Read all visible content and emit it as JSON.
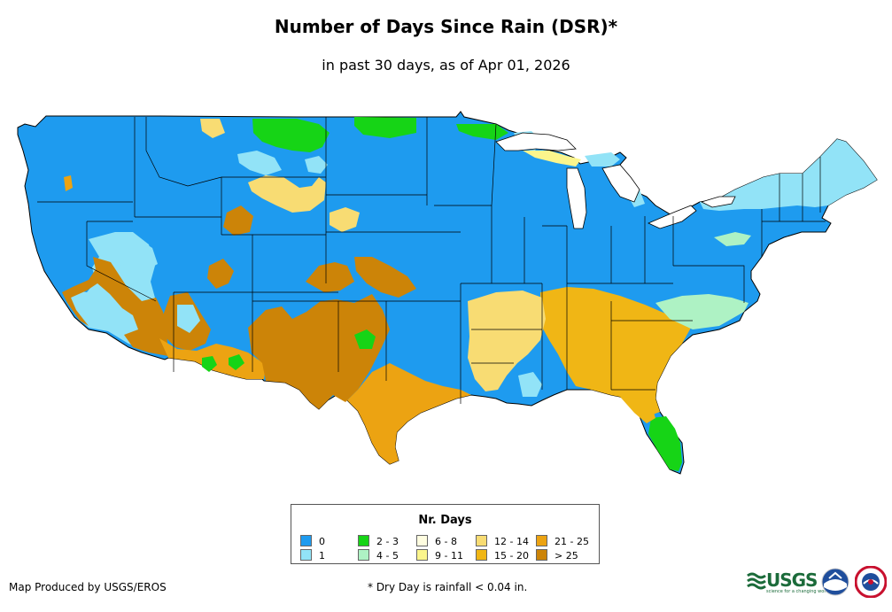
{
  "title": "Number of Days Since Rain (DSR)*",
  "subtitle": "in past 30 days, as of Apr 01, 2026",
  "legend": {
    "title": "Nr. Days",
    "items": [
      {
        "label": "0",
        "color": "#1e9bef"
      },
      {
        "label": "1",
        "color": "#92e3f7"
      },
      {
        "label": "2 - 3",
        "color": "#16d416"
      },
      {
        "label": "4 - 5",
        "color": "#aef2c4"
      },
      {
        "label": "6 - 8",
        "color": "#fffde0"
      },
      {
        "label": "9 - 11",
        "color": "#fbf58c"
      },
      {
        "label": "12 - 14",
        "color": "#f8dc73"
      },
      {
        "label": "15 - 20",
        "color": "#f0b615"
      },
      {
        "label": "21 - 25",
        "color": "#eca312"
      },
      {
        "label": "> 25",
        "color": "#cc8408"
      }
    ]
  },
  "footer": {
    "credit": "Map Produced by USGS/EROS",
    "note": "* Dry Day is rainfall < 0.04 in."
  },
  "logos": {
    "usgs": "USGS",
    "usgs_tagline": "science for a changing world",
    "noaa": "NOAA",
    "nws": "NWS"
  }
}
